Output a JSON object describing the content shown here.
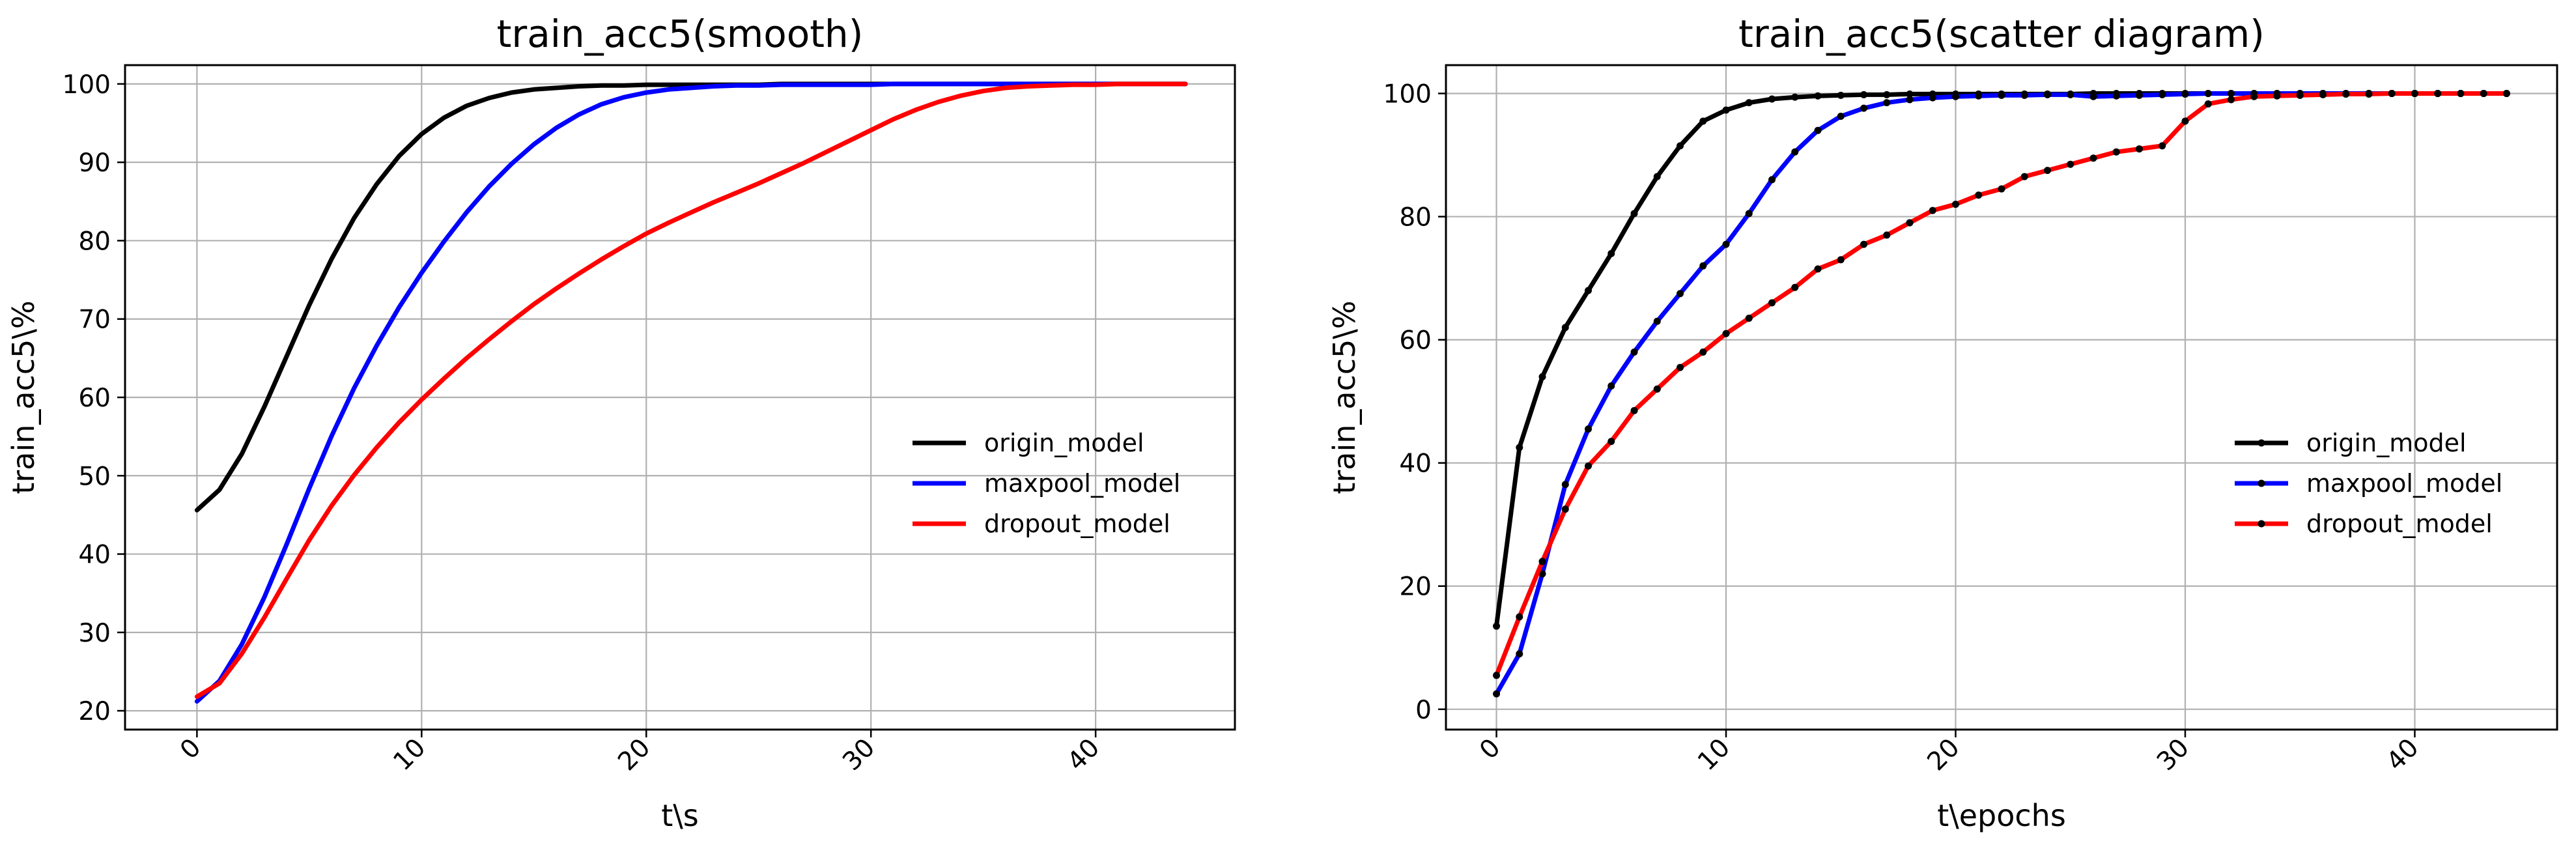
{
  "chart_data": [
    {
      "type": "line",
      "title": "train_acc5(smooth)",
      "xlabel": "t\\s",
      "ylabel": "train_acc5\\%",
      "xlim": [
        -3.2,
        46.2
      ],
      "ylim": [
        17.6,
        102.4
      ],
      "x_ticks": [
        "0",
        "10",
        "20",
        "30",
        "40"
      ],
      "y_ticks": [
        "20",
        "30",
        "40",
        "50",
        "60",
        "70",
        "80",
        "90",
        "100"
      ],
      "grid": true,
      "legend_position": "lower-right",
      "markers": false,
      "x": [
        0,
        1,
        2,
        3,
        4,
        5,
        6,
        7,
        8,
        9,
        10,
        11,
        12,
        13,
        14,
        15,
        16,
        17,
        18,
        19,
        20,
        21,
        22,
        23,
        24,
        25,
        26,
        27,
        28,
        29,
        30,
        31,
        32,
        33,
        34,
        35,
        36,
        37,
        38,
        39,
        40,
        41,
        42,
        43,
        44
      ],
      "series": [
        {
          "name": "origin_model",
          "color": "#000000",
          "values": [
            45.6,
            48.2,
            52.8,
            58.8,
            65.3,
            71.8,
            77.7,
            82.9,
            87.2,
            90.8,
            93.6,
            95.7,
            97.2,
            98.2,
            98.9,
            99.3,
            99.5,
            99.7,
            99.8,
            99.8,
            99.9,
            99.9,
            99.9,
            99.9,
            99.9,
            99.9,
            100,
            100,
            100,
            100,
            100,
            100,
            100,
            100,
            100,
            100,
            100,
            100,
            100,
            100,
            100,
            100,
            100,
            100,
            100
          ]
        },
        {
          "name": "maxpool_model",
          "color": "#0000ff",
          "values": [
            21.2,
            23.8,
            28.5,
            34.5,
            41.3,
            48.4,
            55.1,
            61.2,
            66.6,
            71.5,
            75.9,
            79.9,
            83.6,
            86.9,
            89.8,
            92.3,
            94.4,
            96.1,
            97.4,
            98.3,
            98.9,
            99.3,
            99.5,
            99.7,
            99.8,
            99.8,
            99.9,
            99.9,
            99.9,
            99.9,
            99.9,
            100,
            100,
            100,
            100,
            100,
            100,
            100,
            100,
            100,
            100,
            100,
            100,
            100,
            100
          ]
        },
        {
          "name": "dropout_model",
          "color": "#ff0000",
          "values": [
            21.8,
            23.5,
            27.3,
            31.9,
            36.9,
            41.8,
            46.2,
            50.1,
            53.6,
            56.8,
            59.7,
            62.4,
            65.0,
            67.4,
            69.7,
            71.9,
            73.9,
            75.8,
            77.6,
            79.3,
            80.9,
            82.3,
            83.6,
            84.9,
            86.1,
            87.3,
            88.6,
            89.9,
            91.3,
            92.7,
            94.1,
            95.5,
            96.7,
            97.7,
            98.5,
            99.1,
            99.5,
            99.7,
            99.8,
            99.9,
            99.9,
            100,
            100,
            100,
            100
          ]
        }
      ]
    },
    {
      "type": "line",
      "title": "train_acc5(scatter diagram)",
      "xlabel": "t\\epochs",
      "ylabel": "train_acc5\\%",
      "xlim": [
        -2.2,
        46.2
      ],
      "ylim": [
        -3.3,
        104.6
      ],
      "x_ticks": [
        "0",
        "10",
        "20",
        "30",
        "40"
      ],
      "y_ticks": [
        "0",
        "20",
        "40",
        "60",
        "80",
        "100"
      ],
      "grid": true,
      "legend_position": "lower-right",
      "markers": true,
      "x": [
        0,
        1,
        2,
        3,
        4,
        5,
        6,
        7,
        8,
        9,
        10,
        11,
        12,
        13,
        14,
        15,
        16,
        17,
        18,
        19,
        20,
        21,
        22,
        23,
        24,
        25,
        26,
        27,
        28,
        29,
        30,
        31,
        32,
        33,
        34,
        35,
        36,
        37,
        38,
        39,
        40,
        41,
        42,
        43,
        44
      ],
      "series": [
        {
          "name": "origin_model",
          "color": "#000000",
          "values": [
            13.5,
            42.5,
            54,
            62,
            68,
            74,
            80.5,
            86.5,
            91.5,
            95.5,
            97.3,
            98.5,
            99.1,
            99.4,
            99.6,
            99.7,
            99.8,
            99.8,
            99.9,
            99.9,
            99.9,
            99.9,
            99.9,
            99.9,
            99.9,
            99.9,
            100,
            100,
            100,
            100,
            100,
            100,
            100,
            100,
            100,
            100,
            100,
            100,
            100,
            100,
            100,
            100,
            100,
            100,
            100
          ]
        },
        {
          "name": "maxpool_model",
          "color": "#0000ff",
          "values": [
            2.5,
            9,
            22,
            36.5,
            45.5,
            52.5,
            58,
            63,
            67.5,
            72,
            75.5,
            80.5,
            86,
            90.5,
            94,
            96.3,
            97.6,
            98.5,
            99,
            99.3,
            99.5,
            99.6,
            99.7,
            99.7,
            99.8,
            99.8,
            99.5,
            99.6,
            99.7,
            99.8,
            99.9,
            100,
            100,
            100,
            100,
            100,
            100,
            100,
            100,
            100,
            100,
            100,
            100,
            100,
            100
          ]
        },
        {
          "name": "dropout_model",
          "color": "#ff0000",
          "values": [
            5.5,
            15,
            24,
            32.5,
            39.5,
            43.5,
            48.5,
            52,
            55.5,
            58,
            61,
            63.5,
            66,
            68.5,
            71.5,
            73,
            75.5,
            77,
            79,
            81,
            82,
            83.5,
            84.5,
            86.5,
            87.5,
            88.5,
            89.5,
            90.5,
            91,
            91.5,
            95.5,
            98.3,
            99,
            99.5,
            99.6,
            99.7,
            99.8,
            99.9,
            99.9,
            100,
            100,
            100,
            100,
            100,
            100
          ]
        }
      ]
    }
  ]
}
